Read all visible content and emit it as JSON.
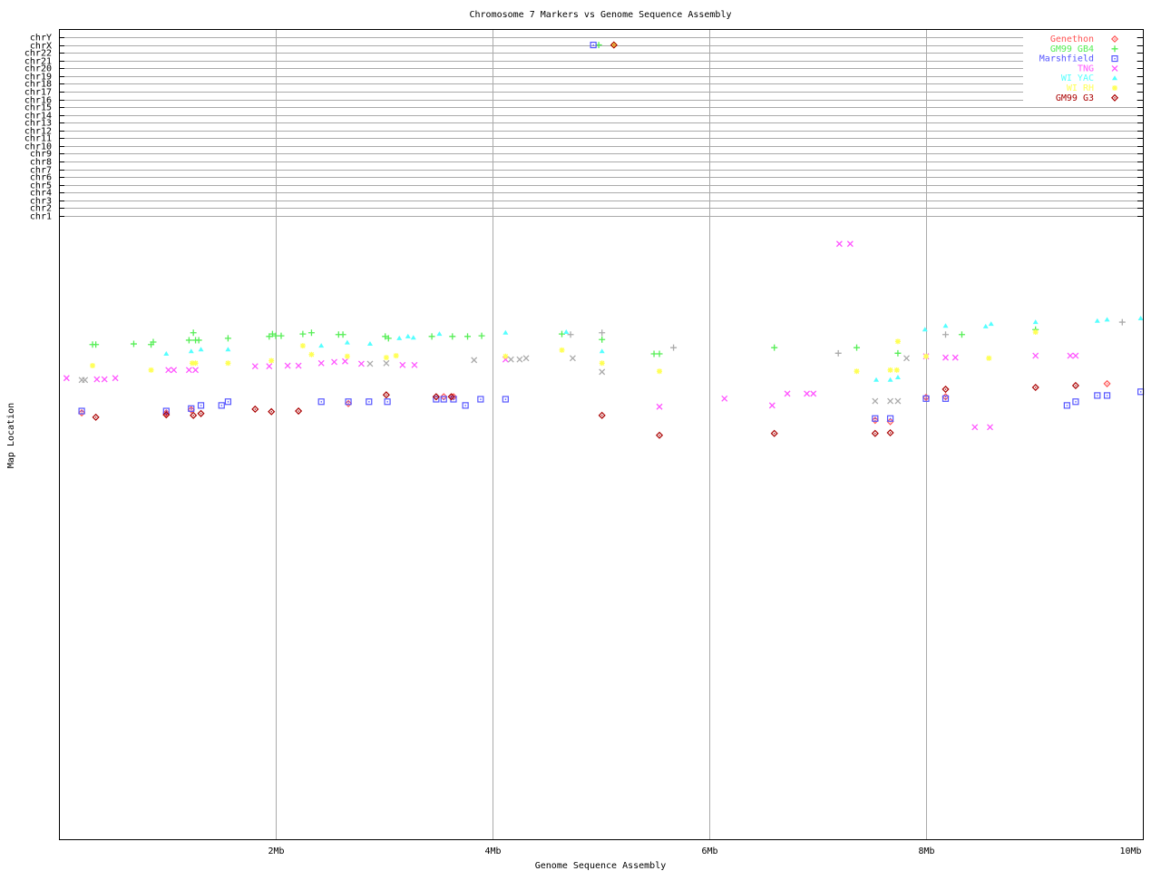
{
  "chart_data": {
    "type": "scatter",
    "title": "Chromosome 7 Markers vs Genome Sequence Assembly",
    "xlabel": "Genome Sequence Assembly",
    "ylabel": "Map Location",
    "xlim": [
      0,
      10
    ],
    "x_unit": "Mb",
    "x_ticks": [
      "2Mb",
      "4Mb",
      "6Mb",
      "8Mb",
      "10Mb"
    ],
    "x_tick_values": [
      2,
      4,
      6,
      8,
      10
    ],
    "chromosome_ticks": [
      "chr1",
      "chr2",
      "chr3",
      "chr4",
      "chr5",
      "chr6",
      "chr7",
      "chr8",
      "chr9",
      "chr10",
      "chr11",
      "chr12",
      "chr13",
      "chr14",
      "chr15",
      "chr16",
      "chr17",
      "chr18",
      "chr19",
      "chr20",
      "chr21",
      "chr22",
      "chrX",
      "chrY"
    ],
    "grid": true,
    "legend_position": "top-right",
    "series": [
      {
        "name": "Genethon",
        "color": "#ff5555",
        "marker": "diamond",
        "points": [
          [
            0.21,
            31.4
          ],
          [
            0.99,
            31.4
          ],
          [
            1.22,
            30.9
          ],
          [
            2.67,
            29.9
          ],
          [
            3.55,
            28.8
          ],
          [
            3.64,
            28.8
          ],
          [
            7.53,
            32.6
          ],
          [
            7.67,
            32.8
          ],
          [
            8.0,
            28.9
          ],
          [
            8.18,
            28.8
          ],
          [
            9.67,
            26.7
          ]
        ]
      },
      {
        "name": "GM99 GB4",
        "color": "#55ee55",
        "marker": "plus",
        "points": [
          [
            4.98,
            "chrX"
          ],
          [
            0.31,
            20.4
          ],
          [
            0.34,
            20.4
          ],
          [
            0.69,
            20.3
          ],
          [
            0.85,
            20.4
          ],
          [
            0.87,
            20.0
          ],
          [
            1.24,
            18.5
          ],
          [
            1.2,
            19.7
          ],
          [
            1.26,
            19.7
          ],
          [
            1.29,
            19.7
          ],
          [
            1.56,
            19.4
          ],
          [
            1.94,
            19.1
          ],
          [
            1.97,
            18.7
          ],
          [
            2.0,
            19.0
          ],
          [
            2.05,
            19.0
          ],
          [
            2.25,
            18.7
          ],
          [
            2.33,
            18.5
          ],
          [
            2.58,
            18.8
          ],
          [
            2.62,
            18.8
          ],
          [
            3.01,
            19.1
          ],
          [
            3.04,
            19.4
          ],
          [
            3.44,
            19.1
          ],
          [
            3.63,
            19.1
          ],
          [
            3.77,
            19.1
          ],
          [
            3.9,
            19.0
          ],
          [
            4.64,
            18.7
          ],
          [
            5.01,
            19.6
          ],
          [
            5.49,
            21.9
          ],
          [
            5.54,
            21.9
          ],
          [
            6.6,
            20.9
          ],
          [
            7.36,
            20.9
          ],
          [
            7.74,
            21.8
          ],
          [
            8.33,
            18.8
          ],
          [
            9.01,
            18.0
          ]
        ]
      },
      {
        "name": "Marshfield",
        "color": "#5555ff",
        "marker": "square",
        "points": [
          [
            4.93,
            "chrX"
          ],
          [
            0.21,
            31.1
          ],
          [
            0.99,
            31.1
          ],
          [
            1.22,
            30.7
          ],
          [
            1.31,
            30.2
          ],
          [
            1.5,
            30.2
          ],
          [
            1.56,
            29.6
          ],
          [
            2.42,
            29.6
          ],
          [
            2.67,
            29.6
          ],
          [
            2.86,
            29.6
          ],
          [
            3.03,
            29.6
          ],
          [
            3.48,
            29.2
          ],
          [
            3.55,
            29.2
          ],
          [
            3.64,
            29.2
          ],
          [
            3.75,
            30.2
          ],
          [
            3.89,
            29.2
          ],
          [
            4.12,
            29.2
          ],
          [
            7.53,
            32.3
          ],
          [
            7.67,
            32.3
          ],
          [
            8.0,
            29.1
          ],
          [
            8.18,
            29.1
          ],
          [
            9.3,
            30.2
          ],
          [
            9.38,
            29.6
          ],
          [
            9.58,
            28.6
          ],
          [
            9.67,
            28.6
          ],
          [
            9.98,
            28.0
          ]
        ]
      },
      {
        "name": "TNG",
        "color": "#ff55ff",
        "marker": "cross",
        "points": [
          [
            0.07,
            25.8
          ],
          [
            0.35,
            26.0
          ],
          [
            0.42,
            26.0
          ],
          [
            0.52,
            25.8
          ],
          [
            1.01,
            24.5
          ],
          [
            1.06,
            24.5
          ],
          [
            1.2,
            24.5
          ],
          [
            1.26,
            24.5
          ],
          [
            1.81,
            23.9
          ],
          [
            1.94,
            23.9
          ],
          [
            2.11,
            23.8
          ],
          [
            2.21,
            23.8
          ],
          [
            2.42,
            23.4
          ],
          [
            2.54,
            23.2
          ],
          [
            2.64,
            23.1
          ],
          [
            2.79,
            23.5
          ],
          [
            3.17,
            23.7
          ],
          [
            3.28,
            23.7
          ],
          [
            4.12,
            22.8
          ],
          [
            5.54,
            30.4
          ],
          [
            6.14,
            29.1
          ],
          [
            6.58,
            30.2
          ],
          [
            6.72,
            28.3
          ],
          [
            6.9,
            28.3
          ],
          [
            6.96,
            28.3
          ],
          [
            7.2,
            4.2
          ],
          [
            7.3,
            4.2
          ],
          [
            8.0,
            22.3
          ],
          [
            8.18,
            22.5
          ],
          [
            8.27,
            22.5
          ],
          [
            8.45,
            33.7
          ],
          [
            8.59,
            33.7
          ],
          [
            9.01,
            22.2
          ],
          [
            9.33,
            22.2
          ],
          [
            9.38,
            22.2
          ]
        ]
      },
      {
        "name": "WI YAC",
        "color": "#55ffff",
        "marker": "triangle",
        "points": [
          [
            0.99,
            21.9
          ],
          [
            1.22,
            21.5
          ],
          [
            1.31,
            21.2
          ],
          [
            1.56,
            21.2
          ],
          [
            2.42,
            20.6
          ],
          [
            2.66,
            20.1
          ],
          [
            2.87,
            20.3
          ],
          [
            3.14,
            19.4
          ],
          [
            3.22,
            19.1
          ],
          [
            3.27,
            19.3
          ],
          [
            3.51,
            18.7
          ],
          [
            4.12,
            18.5
          ],
          [
            4.68,
            18.4
          ],
          [
            5.01,
            21.5
          ],
          [
            7.54,
            26.1
          ],
          [
            7.67,
            26.1
          ],
          [
            7.74,
            25.7
          ],
          [
            7.99,
            18.0
          ],
          [
            8.18,
            17.4
          ],
          [
            8.55,
            17.5
          ],
          [
            8.6,
            17.1
          ],
          [
            9.01,
            16.8
          ],
          [
            9.58,
            16.6
          ],
          [
            9.67,
            16.4
          ],
          [
            9.98,
            16.2
          ]
        ]
      },
      {
        "name": "WI RH",
        "color": "#ffff55",
        "marker": "star",
        "points": [
          [
            5.12,
            "chrX"
          ],
          [
            0.31,
            23.8
          ],
          [
            0.85,
            24.5
          ],
          [
            1.23,
            23.4
          ],
          [
            1.26,
            23.4
          ],
          [
            1.56,
            23.4
          ],
          [
            1.96,
            23.0
          ],
          [
            2.25,
            20.6
          ],
          [
            2.33,
            22.0
          ],
          [
            2.66,
            22.3
          ],
          [
            3.02,
            22.5
          ],
          [
            3.11,
            22.2
          ],
          [
            4.12,
            22.3
          ],
          [
            4.64,
            21.3
          ],
          [
            5.01,
            23.4
          ],
          [
            5.54,
            24.7
          ],
          [
            7.36,
            24.7
          ],
          [
            7.74,
            19.9
          ],
          [
            7.67,
            24.5
          ],
          [
            7.73,
            24.5
          ],
          [
            8.0,
            22.3
          ],
          [
            8.58,
            22.6
          ],
          [
            9.01,
            18.4
          ]
        ]
      },
      {
        "name": "GM99 G3",
        "color": "#aa0000",
        "marker": "diamond",
        "points": [
          [
            5.12,
            "chrX"
          ],
          [
            0.34,
            32.1
          ],
          [
            0.99,
            31.7
          ],
          [
            1.24,
            31.8
          ],
          [
            1.31,
            31.5
          ],
          [
            1.81,
            30.8
          ],
          [
            1.96,
            31.2
          ],
          [
            2.21,
            31.1
          ],
          [
            3.02,
            28.5
          ],
          [
            3.48,
            28.8
          ],
          [
            3.62,
            28.8
          ],
          [
            5.01,
            31.8
          ],
          [
            5.54,
            35.0
          ],
          [
            6.6,
            34.7
          ],
          [
            7.53,
            34.7
          ],
          [
            7.67,
            34.6
          ],
          [
            8.18,
            27.6
          ],
          [
            9.01,
            27.3
          ],
          [
            9.38,
            27.0
          ]
        ]
      },
      {
        "color": "#aaaaaa",
        "marker": "cross",
        "points": [
          [
            0.21,
            26.1
          ],
          [
            0.24,
            26.1
          ],
          [
            2.87,
            23.5
          ],
          [
            3.02,
            23.4
          ],
          [
            3.83,
            22.9
          ],
          [
            4.17,
            22.8
          ],
          [
            4.25,
            22.8
          ],
          [
            4.31,
            22.6
          ],
          [
            4.74,
            22.6
          ],
          [
            5.01,
            24.8
          ],
          [
            7.53,
            29.5
          ],
          [
            7.67,
            29.5
          ],
          [
            7.74,
            29.5
          ],
          [
            7.82,
            22.6
          ]
        ]
      },
      {
        "color": "#aaaaaa",
        "marker": "plus",
        "points": [
          [
            4.72,
            18.8
          ],
          [
            7.19,
            21.8
          ],
          [
            8.18,
            18.8
          ],
          [
            9.81,
            16.8
          ],
          [
            5.01,
            18.5
          ],
          [
            5.67,
            20.9
          ]
        ]
      }
    ]
  }
}
